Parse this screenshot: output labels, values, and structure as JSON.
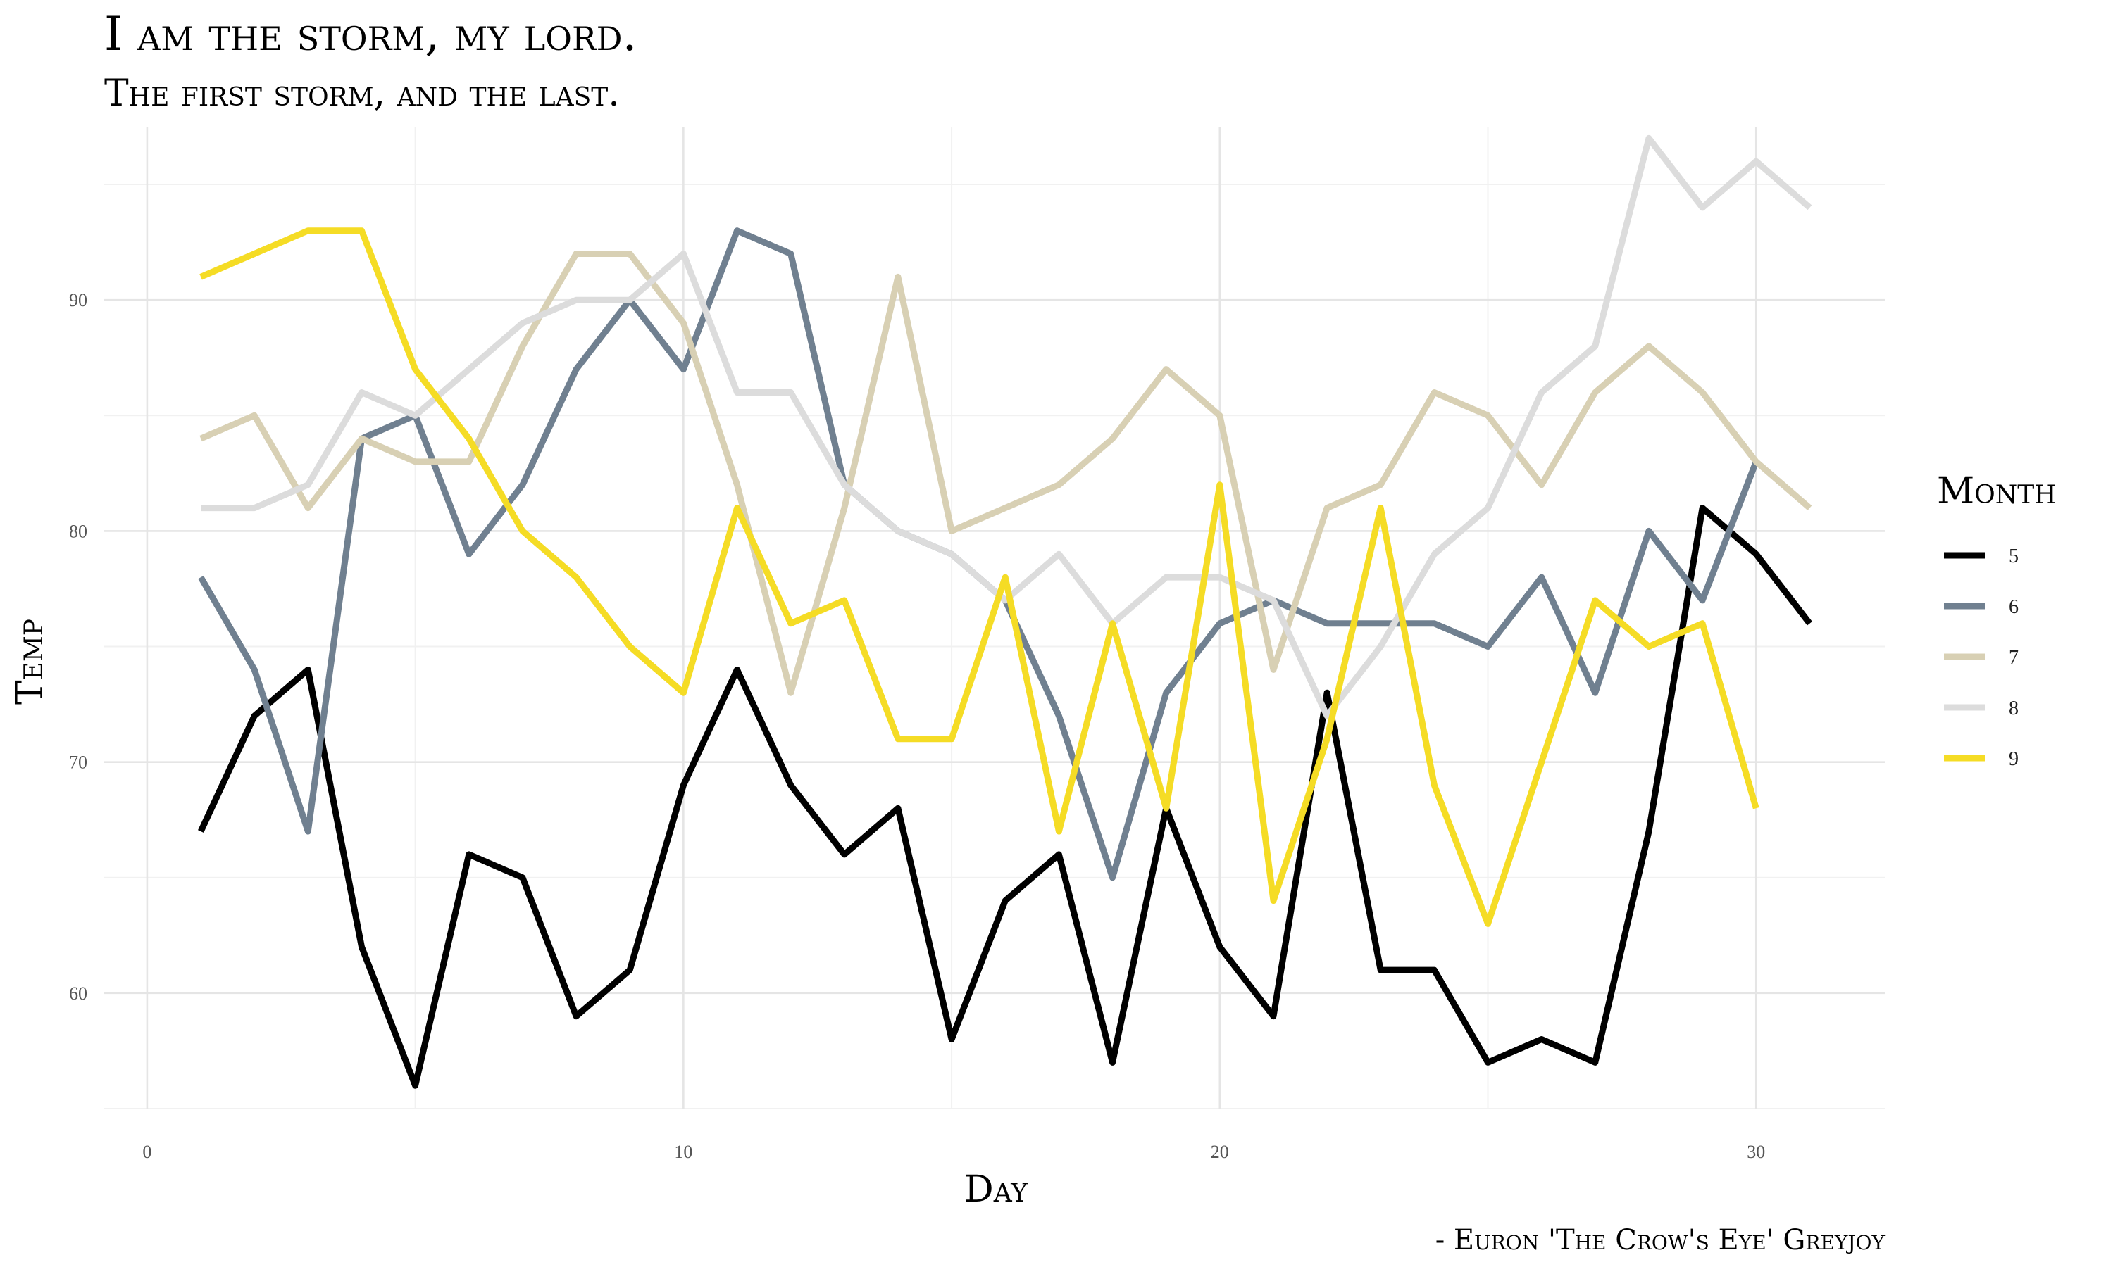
{
  "chart_data": {
    "type": "line",
    "title": "I am the storm, my lord.",
    "subtitle": "The first storm, and the last.",
    "caption": "- Euron 'The Crow's Eye' Greyjoy",
    "xlabel": "Day",
    "ylabel": "Temp",
    "xlim": [
      -0.8,
      32.4
    ],
    "ylim": [
      55,
      97.5
    ],
    "x_ticks": [
      0,
      10,
      20,
      30
    ],
    "y_ticks": [
      60,
      70,
      80,
      90
    ],
    "grid": true,
    "legend": {
      "title": "Month",
      "position": "right"
    },
    "series": [
      {
        "name": "5",
        "color": "#000000",
        "x": [
          1,
          2,
          3,
          4,
          5,
          6,
          7,
          8,
          9,
          10,
          11,
          12,
          13,
          14,
          15,
          16,
          17,
          18,
          19,
          20,
          21,
          22,
          23,
          24,
          25,
          26,
          27,
          28,
          29,
          30,
          31
        ],
        "values": [
          67,
          72,
          74,
          62,
          56,
          66,
          65,
          59,
          61,
          69,
          74,
          69,
          66,
          68,
          58,
          64,
          66,
          57,
          68,
          62,
          59,
          73,
          61,
          61,
          57,
          58,
          57,
          67,
          81,
          79,
          76
        ]
      },
      {
        "name": "6",
        "color": "#708090",
        "x": [
          1,
          2,
          3,
          4,
          5,
          6,
          7,
          8,
          9,
          10,
          11,
          12,
          13,
          14,
          15,
          16,
          17,
          18,
          19,
          20,
          21,
          22,
          23,
          24,
          25,
          26,
          27,
          28,
          29,
          30
        ],
        "values": [
          78,
          74,
          67,
          84,
          85,
          79,
          82,
          87,
          90,
          87,
          93,
          92,
          82,
          80,
          79,
          77,
          72,
          65,
          73,
          76,
          77,
          76,
          76,
          76,
          75,
          78,
          73,
          80,
          77,
          83
        ]
      },
      {
        "name": "7",
        "color": "#d8d0b4",
        "x": [
          1,
          2,
          3,
          4,
          5,
          6,
          7,
          8,
          9,
          10,
          11,
          12,
          13,
          14,
          15,
          16,
          17,
          18,
          19,
          20,
          21,
          22,
          23,
          24,
          25,
          26,
          27,
          28,
          29,
          30,
          31
        ],
        "values": [
          84,
          85,
          81,
          84,
          83,
          83,
          88,
          92,
          92,
          89,
          82,
          73,
          81,
          91,
          80,
          81,
          82,
          84,
          87,
          85,
          74,
          81,
          82,
          86,
          85,
          82,
          86,
          88,
          86,
          83,
          81
        ]
      },
      {
        "name": "8",
        "color": "#dcdcdc",
        "x": [
          1,
          2,
          3,
          4,
          5,
          6,
          7,
          8,
          9,
          10,
          11,
          12,
          13,
          14,
          15,
          16,
          17,
          18,
          19,
          20,
          21,
          22,
          23,
          24,
          25,
          26,
          27,
          28,
          29,
          30,
          31
        ],
        "values": [
          81,
          81,
          82,
          86,
          85,
          87,
          89,
          90,
          90,
          92,
          86,
          86,
          82,
          80,
          79,
          77,
          79,
          76,
          78,
          78,
          77,
          72,
          75,
          79,
          81,
          86,
          88,
          97,
          94,
          96,
          94
        ]
      },
      {
        "name": "9",
        "color": "#f5dc25",
        "x": [
          1,
          2,
          3,
          4,
          5,
          6,
          7,
          8,
          9,
          10,
          11,
          12,
          13,
          14,
          15,
          16,
          17,
          18,
          19,
          20,
          21,
          22,
          23,
          24,
          25,
          26,
          27,
          28,
          29,
          30
        ],
        "values": [
          91,
          92,
          93,
          93,
          87,
          84,
          80,
          78,
          75,
          73,
          81,
          76,
          77,
          71,
          71,
          78,
          67,
          76,
          68,
          82,
          64,
          71,
          81,
          69,
          63,
          70,
          77,
          75,
          76,
          68
        ]
      }
    ]
  }
}
